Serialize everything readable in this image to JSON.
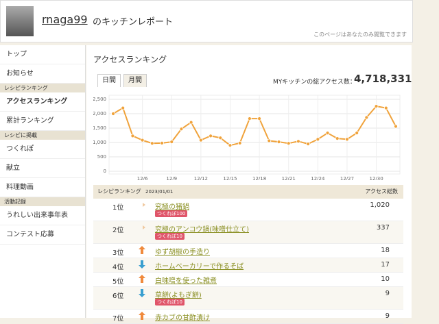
{
  "header": {
    "user": "rnaga99",
    "title": "のキッチンレポート",
    "note": "このページはあなたのみ閲覧できます"
  },
  "sidebar": {
    "top": [
      "トップ",
      "お知らせ"
    ],
    "groups": [
      {
        "heading": "レシピランキング",
        "items": [
          "アクセスランキング",
          "累計ランキング"
        ]
      },
      {
        "heading": "レシピに掲載",
        "items": [
          "つくれぽ",
          "献立",
          "料理動画"
        ]
      },
      {
        "heading": "活動記録",
        "items": [
          "うれしい出来事年表",
          "コンテスト応募"
        ]
      }
    ]
  },
  "main": {
    "title": "アクセスランキング",
    "tabs": [
      "日間",
      "月間"
    ],
    "total_label": "MYキッチンの総アクセス数：",
    "total": "4,718,331"
  },
  "chart_data": {
    "type": "line",
    "categories": [
      null,
      null,
      null,
      "12/6",
      null,
      null,
      "12/9",
      null,
      null,
      "12/12",
      null,
      null,
      "12/15",
      null,
      null,
      "12/18",
      null,
      null,
      "12/21",
      null,
      null,
      "12/24",
      null,
      null,
      "12/27",
      null,
      null,
      "12/30",
      null,
      null
    ],
    "series": [
      {
        "name": "アクセス数",
        "color": "#f0a33c",
        "values": [
          2000,
          2200,
          1230,
          1080,
          970,
          980,
          1020,
          1470,
          1700,
          1080,
          1230,
          1160,
          900,
          980,
          1830,
          1830,
          1060,
          1020,
          970,
          1040,
          950,
          1110,
          1330,
          1140,
          1110,
          1330,
          1870,
          2260,
          2200,
          1560
        ]
      }
    ],
    "ylim": [
      0,
      2500
    ],
    "yticks": [
      0,
      500,
      {
        "value": 1000,
        "label": "1,000"
      },
      {
        "value": 1500,
        "label": "1,500"
      },
      {
        "value": 2000,
        "label": "2,000"
      },
      {
        "value": 2500,
        "label": "2,500"
      }
    ],
    "grid": true
  },
  "table": {
    "headers": [
      "レシピランキング",
      "2023/01/01",
      "アクセス総数"
    ],
    "rows": [
      {
        "rank": "1位",
        "title": "究極の猪鍋",
        "badge": "つくれぽ100",
        "count": "1,020"
      },
      {
        "rank": "2位",
        "title": "究極のアンコウ鍋(味噌仕立て)",
        "badge": "つくれぽ10",
        "count": "337"
      },
      {
        "rank": "3位",
        "title": "ゆず胡椒の手造り",
        "count": "18"
      },
      {
        "rank": "4位",
        "title": "ホームベーカリーで作るそば",
        "count": "17"
      },
      {
        "rank": "5位",
        "title": "白味噌を使った雑煮",
        "count": "10"
      },
      {
        "rank": "6位",
        "title": "草餅(よもぎ餅)",
        "badge": "つくれぽ10",
        "count": "9"
      },
      {
        "rank": "7位",
        "title": "赤カブの甘酢漬け",
        "count": "9"
      }
    ]
  }
}
